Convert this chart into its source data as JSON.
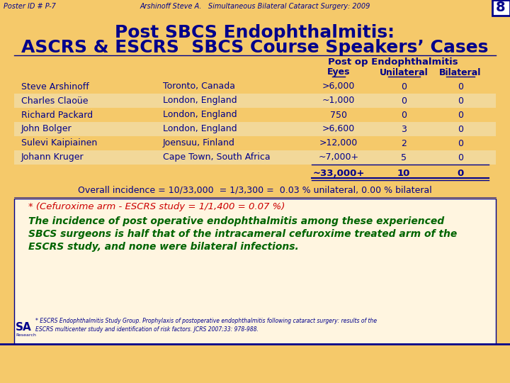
{
  "bg_color": "#F5C96A",
  "lower_bg_color": "#FFF5E0",
  "header_text": "Poster ID # P-7",
  "header_center": "Arshinoff Steve A.   Simultaneous Bilateral Cataract Surgery: 2009",
  "page_num": "8",
  "title_line1": "Post SBCS Endophthalmitis:",
  "title_line2": "ASCRS & ESCRS  SBCS Course Speakers’ Cases",
  "col_header": "Post op Endophthalmitis",
  "col_sub": [
    "Eyes",
    "Unilateral",
    "Bilateral"
  ],
  "rows": [
    [
      "Steve Arshinoff",
      "Toronto, Canada",
      ">6,000",
      "0",
      "0"
    ],
    [
      "Charles Claoüe",
      "London, England",
      "~1,000",
      "0",
      "0"
    ],
    [
      "Richard Packard",
      "London, England",
      "750",
      "0",
      "0"
    ],
    [
      "John Bolger",
      "London, England",
      ">6,600",
      "3",
      "0"
    ],
    [
      "Sulevi Kaipiainen",
      "Joensuu, Finland",
      ">12,000",
      "2",
      "0"
    ],
    [
      "Johann Kruger",
      "Cape Town, South Africa",
      "~7,000+",
      "5",
      "0"
    ]
  ],
  "total_row": [
    "~33,000+",
    "10",
    "0"
  ],
  "overall_text": "Overall incidence = 10/33,000  = 1/3,300 =  0.03 % unilateral, 0.00 % bilateral",
  "cefuroxime_text": "* (Cefuroxime arm - ESCRS study = 1/1,400 = 0.07 %)",
  "conclusion_lines": [
    "The incidence of post operative endophthalmitis among these experienced",
    "SBCS surgeons is half that of the intracameral cefuroxime treated arm of the",
    "ESCRS study, and none were bilateral infections."
  ],
  "footnote_line1": "* ESCRS Endophthalmitis Study Group. Prophylaxis of postoperative endophthalmitis following cataract surgery: results of the",
  "footnote_line2": "ESCRS multicenter study and identification of risk factors. JCRS 2007;33: 978-988.",
  "dark_blue": "#00008B",
  "red_color": "#CC0000",
  "green_color": "#006400"
}
